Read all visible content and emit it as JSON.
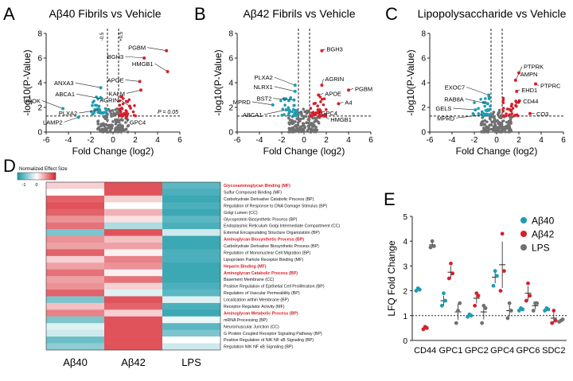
{
  "colors": {
    "blue": "#1f9bb3",
    "red": "#d5202b",
    "grey": "#707070",
    "heat_low": "#1a9aa8",
    "heat_mid": "#ffffff",
    "heat_high": "#d7242e"
  },
  "panels": {
    "A": {
      "letter": "A",
      "title": "Aβ40 Fibrils vs Vehicle"
    },
    "B": {
      "letter": "B",
      "title": "Aβ42 Fibrils vs Vehicle"
    },
    "C": {
      "letter": "C",
      "title": "Lipopolysaccharide vs Vehicle"
    },
    "D": {
      "letter": "D"
    },
    "E": {
      "letter": "E"
    }
  },
  "chart_data": [
    {
      "panel": "A",
      "type": "scatter",
      "title": "Aβ40 Fibrils vs Vehicle",
      "xlabel": "Fold Change (log2)",
      "ylabel": "-log10(P-Value)",
      "xlim": [
        -6,
        6
      ],
      "ylim": [
        0,
        8
      ],
      "xticks": [
        -6,
        -4,
        -2,
        0,
        2,
        4,
        6
      ],
      "yticks": [
        0,
        2,
        4,
        6,
        8
      ],
      "vlines": [
        -0.5,
        0.5
      ],
      "vline_labels": [
        "-0.5",
        "+0.5"
      ],
      "hline": 1.3,
      "hline_label": "P = 0.05",
      "labeled_points": [
        {
          "label": "PGBM",
          "x": 4.8,
          "y": 6.6,
          "color": "red"
        },
        {
          "label": "BGH3",
          "x": 2.8,
          "y": 6.0,
          "color": "red"
        },
        {
          "label": "HMGB1",
          "x": 4.9,
          "y": 4.9,
          "color": "red"
        },
        {
          "label": "APOE",
          "x": 2.4,
          "y": 4.1,
          "color": "red"
        },
        {
          "label": "KALM",
          "x": 2.5,
          "y": 3.4,
          "color": "red"
        },
        {
          "label": "AGRIN",
          "x": 1.5,
          "y": 2.1,
          "color": "red"
        },
        {
          "label": "GPC4",
          "x": 1.2,
          "y": 1.2,
          "color": "red"
        },
        {
          "label": "ANXA3",
          "x": -1.1,
          "y": 3.6,
          "color": "blue"
        },
        {
          "label": "ABCA1",
          "x": -1.0,
          "y": 2.7,
          "color": "blue"
        },
        {
          "label": "PLXA2",
          "x": -1.2,
          "y": 1.8,
          "color": "blue"
        },
        {
          "label": "UROK",
          "x": -4.5,
          "y": 1.9,
          "color": "blue"
        },
        {
          "label": "LAMP2",
          "x": -3.1,
          "y": 1.2,
          "color": "blue"
        }
      ]
    },
    {
      "panel": "B",
      "type": "scatter",
      "title": "Aβ42 Fibrils vs Vehicle",
      "xlabel": "Fold Change (log2)",
      "ylabel": "-log10(P-Value)",
      "xlim": [
        -6,
        6
      ],
      "ylim": [
        0,
        8
      ],
      "xticks": [
        -6,
        -4,
        -2,
        0,
        2,
        4,
        6
      ],
      "yticks": [
        0,
        2,
        4,
        6,
        8
      ],
      "vlines": [
        -0.5,
        0.5
      ],
      "hline": 1.3,
      "labeled_points": [
        {
          "label": "BGH3",
          "x": 1.6,
          "y": 6.6,
          "color": "red"
        },
        {
          "label": "AGRIN",
          "x": 1.6,
          "y": 3.8,
          "color": "red"
        },
        {
          "label": "PGBM",
          "x": 4.0,
          "y": 3.4,
          "color": "red"
        },
        {
          "label": "APOE",
          "x": 1.3,
          "y": 3.0,
          "color": "red"
        },
        {
          "label": "A4",
          "x": 3.1,
          "y": 2.3,
          "color": "red"
        },
        {
          "label": "GPC4",
          "x": 1.4,
          "y": 1.8,
          "color": "red"
        },
        {
          "label": "HMGB1",
          "x": 1.8,
          "y": 1.3,
          "color": "red"
        },
        {
          "label": "PLXA2",
          "x": -0.8,
          "y": 3.8,
          "color": "blue"
        },
        {
          "label": "NLRX1",
          "x": -0.8,
          "y": 3.3,
          "color": "blue"
        },
        {
          "label": "BST2",
          "x": -0.9,
          "y": 2.6,
          "color": "blue"
        },
        {
          "label": "MPRD",
          "x": -2.8,
          "y": 2.2,
          "color": "blue"
        },
        {
          "label": "ABCA1",
          "x": -1.6,
          "y": 1.8,
          "color": "blue"
        }
      ]
    },
    {
      "panel": "C",
      "type": "scatter",
      "title": "Lipopolysaccharide vs Vehicle",
      "xlabel": "Fold Change (log2)",
      "ylabel": "-log10(P-Value)",
      "xlim": [
        -6,
        6
      ],
      "ylim": [
        0,
        8
      ],
      "xticks": [
        -6,
        -4,
        -2,
        0,
        2,
        4,
        6
      ],
      "yticks": [
        0,
        2,
        4,
        6,
        8
      ],
      "vlines": [
        -0.5,
        0.5
      ],
      "hline": 1.3,
      "labeled_points": [
        {
          "label": "PTPRK",
          "x": 2.0,
          "y": 4.8,
          "color": "red"
        },
        {
          "label": "AMPN",
          "x": 1.7,
          "y": 4.2,
          "color": "red"
        },
        {
          "label": "PTPRC",
          "x": 3.5,
          "y": 3.9,
          "color": "red"
        },
        {
          "label": "EHD1",
          "x": 1.8,
          "y": 3.3,
          "color": "red"
        },
        {
          "label": "CD44",
          "x": 1.8,
          "y": 2.4,
          "color": "red"
        },
        {
          "label": "CO3",
          "x": 3.0,
          "y": 1.5,
          "color": "red"
        },
        {
          "label": "EXOC7",
          "x": -0.7,
          "y": 3.0,
          "color": "blue"
        },
        {
          "label": "RAB8A",
          "x": -0.8,
          "y": 2.3,
          "color": "blue"
        },
        {
          "label": "GELS",
          "x": -1.9,
          "y": 1.8,
          "color": "blue"
        },
        {
          "label": "MPRD",
          "x": -1.2,
          "y": 1.4,
          "color": "blue"
        }
      ]
    },
    {
      "panel": "D",
      "type": "heatmap",
      "legend_title": "Normalized Effect Size",
      "legend_ticks": [
        "-1",
        "0",
        "1"
      ],
      "vmin": -1.4,
      "vmax": 1.4,
      "columns": [
        "Aβ40",
        "Aβ42",
        "LPS"
      ],
      "rows": [
        {
          "label": "Glycosaminoglycan Binding (MF)",
          "highlight": true,
          "values": [
            0.3,
            1.1,
            -1.0
          ]
        },
        {
          "label": "Sulfur Compound Binding (MF)",
          "highlight": false,
          "values": [
            0.0,
            1.1,
            -1.1
          ]
        },
        {
          "label": "Carbohydrate Derivative Catabolic Process (BP)",
          "highlight": false,
          "values": [
            1.0,
            0.3,
            -1.2
          ]
        },
        {
          "label": "Regulation of Response to DNA Damage Stimulus (BP)",
          "highlight": false,
          "values": [
            1.1,
            0.0,
            -1.1
          ]
        },
        {
          "label": "Golgi Lumen (CC)",
          "highlight": false,
          "values": [
            1.0,
            0.5,
            -1.2
          ]
        },
        {
          "label": "Glycoprotein Biosynthetic Process (BP)",
          "highlight": false,
          "values": [
            0.7,
            0.2,
            -1.0
          ]
        },
        {
          "label": "Endoplasmic Reticulum Golgi Intermediate Compartment (CC)",
          "highlight": false,
          "values": [
            0.9,
            -0.5,
            -1.1
          ]
        },
        {
          "label": "External Encapsulating Structure Organization (BP)",
          "highlight": false,
          "values": [
            -0.8,
            1.1,
            -0.3
          ]
        },
        {
          "label": "Aminoglycan Biosynthetic Process (BP)",
          "highlight": true,
          "values": [
            0.7,
            0.4,
            -1.2
          ]
        },
        {
          "label": "Carbohydrate Derivative Biosynthetic Process (BP)",
          "highlight": false,
          "values": [
            0.6,
            0.6,
            -1.2
          ]
        },
        {
          "label": "Regulation of Mononuclear Cell Migration (BP)",
          "highlight": false,
          "values": [
            1.0,
            0.1,
            -1.1
          ]
        },
        {
          "label": "Lipoprotein Particle Receptor Binding (MF)",
          "highlight": false,
          "values": [
            0.3,
            0.8,
            -1.1
          ]
        },
        {
          "label": "Heparin Binding (MF)",
          "highlight": true,
          "values": [
            0.6,
            0.7,
            -1.2
          ]
        },
        {
          "label": "Aminoglycan Catabolic Process (BP)",
          "highlight": true,
          "values": [
            0.9,
            0.1,
            -1.2
          ]
        },
        {
          "label": "Basement Membrane (CC)",
          "highlight": false,
          "values": [
            0.6,
            0.9,
            -1.2
          ]
        },
        {
          "label": "Positive Regulation of Epithelial Cell Proliferation (BP)",
          "highlight": false,
          "values": [
            0.7,
            0.3,
            -1.1
          ]
        },
        {
          "label": "Regulation of Vascular Permeability (BP)",
          "highlight": false,
          "values": [
            1.0,
            -0.2,
            -1.0
          ]
        },
        {
          "label": "Localization within Membrane (BP)",
          "highlight": false,
          "values": [
            -0.8,
            1.1,
            -0.2
          ]
        },
        {
          "label": "Receptor Regulator Activity (MF)",
          "highlight": false,
          "values": [
            0.4,
            1.0,
            -1.1
          ]
        },
        {
          "label": "Aminoglycan Metabolic Process (BP)",
          "highlight": true,
          "values": [
            0.8,
            0.3,
            -1.2
          ]
        },
        {
          "label": "mRNA Processing (BP)",
          "highlight": false,
          "values": [
            -0.8,
            1.1,
            -0.1
          ]
        },
        {
          "label": "Neuromuscular Junction (CC)",
          "highlight": false,
          "values": [
            -0.2,
            1.1,
            -1.0
          ]
        },
        {
          "label": "G Protein Coupled Receptor Signaling Pathway (BP)",
          "highlight": false,
          "values": [
            -0.3,
            1.1,
            -0.8
          ]
        },
        {
          "label": "Positive Regulation of NIK NF κB Signaling (BP)",
          "highlight": false,
          "values": [
            -0.9,
            1.1,
            0.0
          ]
        },
        {
          "label": "Regulation NIK NF κB Signaling (BP)",
          "highlight": false,
          "values": [
            -0.7,
            1.1,
            -0.3
          ]
        }
      ]
    },
    {
      "panel": "E",
      "type": "scatter",
      "ylabel": "LFQ Fold Change",
      "ylim": [
        0,
        5
      ],
      "yticks": [
        0,
        1,
        2,
        3,
        4,
        5
      ],
      "reference_line": 1,
      "categories": [
        "CD44",
        "GPC1",
        "GPC2",
        "GPC4",
        "GPC6",
        "SDC2"
      ],
      "series": [
        {
          "name": "Aβ40",
          "color": "blue",
          "means": [
            2.05,
            1.6,
            1.0,
            2.55,
            1.25,
            1.25
          ],
          "points": [
            [
              2.0,
              2.1,
              2.05
            ],
            [
              1.4,
              1.9,
              1.6
            ],
            [
              0.95,
              1.05,
              1.0
            ],
            [
              2.2,
              2.8,
              2.6
            ],
            [
              1.2,
              1.3,
              1.25
            ],
            [
              1.2,
              1.3,
              1.25
            ]
          ]
        },
        {
          "name": "Aβ42",
          "color": "red",
          "means": [
            0.5,
            2.75,
            1.7,
            3.05,
            1.9,
            0.9
          ],
          "points": [
            [
              0.45,
              0.55,
              0.5
            ],
            [
              2.5,
              3.1,
              2.7
            ],
            [
              1.4,
              1.9,
              1.8
            ],
            [
              2.0,
              4.3,
              2.8
            ],
            [
              1.6,
              2.3,
              1.8
            ],
            [
              0.7,
              1.2,
              0.8
            ]
          ]
        },
        {
          "name": "LPS",
          "color": "grey",
          "means": [
            3.85,
            1.15,
            1.15,
            1.2,
            1.4,
            0.8
          ],
          "points": [
            [
              3.75,
              4.0,
              3.8
            ],
            [
              0.7,
              1.2,
              1.5
            ],
            [
              0.7,
              1.4,
              1.3
            ],
            [
              0.9,
              1.5,
              1.2
            ],
            [
              1.2,
              1.5,
              1.5
            ],
            [
              0.75,
              0.8,
              0.85
            ]
          ]
        }
      ]
    }
  ]
}
